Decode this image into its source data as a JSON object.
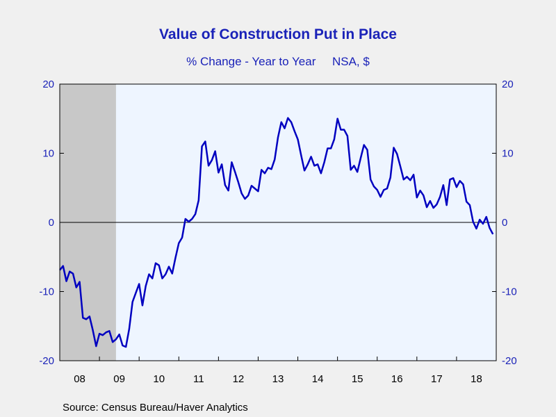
{
  "title": "Value of Construction Put in Place",
  "subtitle": "% Change - Year to Year     NSA, $",
  "source": "Source:  Census Bureau/Haver Analytics",
  "colors": {
    "line": "#0000c0",
    "plot_background": "#eef5ff",
    "recession_shade": "#c8c8c8",
    "axis_label": "#1a22b8",
    "page_background": "#f0f0f0"
  },
  "chart_data": {
    "type": "line",
    "title": "Value of Construction Put in Place",
    "subtitle": "% Change - Year to Year     NSA, $",
    "xlabel": "",
    "ylabel": "",
    "ylim": [
      -20,
      20
    ],
    "y_ticks": [
      20,
      10,
      0,
      -10,
      -20
    ],
    "y_tick_labels_left": [
      "20",
      "10",
      "0",
      "-10",
      "-20"
    ],
    "y_tick_labels_right": [
      "20",
      "10",
      "0",
      "-10",
      "-20"
    ],
    "x_range": [
      "2008-01",
      "2019-01"
    ],
    "x_tick_labels": [
      "08",
      "09",
      "10",
      "11",
      "12",
      "13",
      "14",
      "15",
      "16",
      "17",
      "18"
    ],
    "zero_line": true,
    "grid": false,
    "shaded_regions": [
      {
        "start": "2008-01",
        "end": "2009-06",
        "label": "recession"
      }
    ],
    "series": [
      {
        "start": "2008-01",
        "frequency": "monthly",
        "values": [
          -6.9,
          -6.3,
          -8.5,
          -7.1,
          -7.4,
          -9.4,
          -8.6,
          -13.8,
          -14.0,
          -13.6,
          -15.6,
          -17.9,
          -16.1,
          -16.3,
          -15.9,
          -15.7,
          -17.3,
          -16.9,
          -16.2,
          -17.8,
          -18.0,
          -15.4,
          -11.5,
          -10.2,
          -8.9,
          -12.0,
          -9.2,
          -7.5,
          -8.1,
          -5.9,
          -6.2,
          -8.1,
          -7.5,
          -6.4,
          -7.4,
          -5.1,
          -3.0,
          -2.2,
          0.5,
          0.1,
          0.5,
          1.2,
          3.2,
          11.0,
          11.7,
          8.2,
          9.0,
          10.3,
          7.2,
          8.4,
          5.4,
          4.6,
          8.7,
          7.3,
          5.8,
          4.2,
          3.4,
          3.9,
          5.3,
          4.9,
          4.5,
          7.6,
          7.1,
          7.9,
          7.7,
          9.1,
          12.3,
          14.5,
          13.6,
          15.1,
          14.5,
          13.2,
          12.0,
          9.7,
          7.5,
          8.4,
          9.5,
          8.2,
          8.4,
          7.1,
          8.7,
          10.7,
          10.7,
          12.0,
          15.0,
          13.4,
          13.4,
          12.5,
          7.6,
          8.2,
          7.3,
          9.3,
          11.2,
          10.5,
          6.2,
          5.2,
          4.7,
          3.7,
          4.7,
          4.9,
          6.5,
          10.8,
          9.9,
          8.1,
          6.2,
          6.6,
          6.1,
          6.9,
          3.6,
          4.6,
          3.9,
          2.2,
          3.1,
          2.1,
          2.6,
          3.7,
          5.4,
          2.5,
          6.2,
          6.4,
          5.1,
          6.0,
          5.5,
          3.0,
          2.5,
          0.1,
          -0.9,
          0.4,
          -0.2,
          0.8,
          -0.8,
          -1.7
        ]
      }
    ]
  }
}
